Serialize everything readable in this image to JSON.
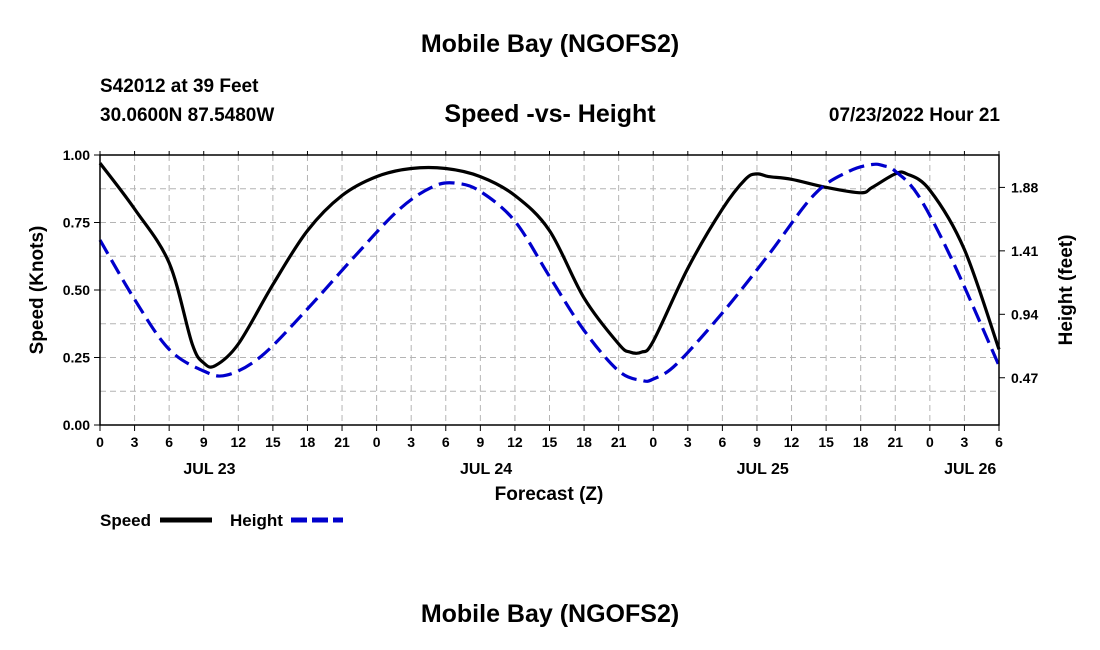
{
  "header": {
    "title": "Mobile Bay (NGOFS2)",
    "station": "S42012 at 39 Feet",
    "coords": "30.0600N  87.5480W",
    "datetime": "07/23/2022 Hour 21",
    "footer_title": "Mobile Bay (NGOFS2)"
  },
  "chart_data": {
    "type": "line",
    "title": "Speed -vs- Height",
    "xlabel": "Forecast (Z)",
    "ylabel": "Speed (Knots)",
    "y2label": "Height (feet)",
    "xlim": [
      0,
      78
    ],
    "ylim": [
      0,
      1
    ],
    "y2lim": [
      0.12,
      2.12
    ],
    "x_tick_labels": [
      "0",
      "3",
      "6",
      "9",
      "12",
      "15",
      "18",
      "21",
      "0",
      "3",
      "6",
      "9",
      "12",
      "15",
      "18",
      "21",
      "0",
      "3",
      "6",
      "9",
      "12",
      "15",
      "18",
      "21",
      "0",
      "3",
      "6"
    ],
    "date_labels": [
      {
        "label": "JUL 23",
        "x": 9.5
      },
      {
        "label": "JUL 24",
        "x": 33.5
      },
      {
        "label": "JUL 25",
        "x": 57.5
      },
      {
        "label": "JUL 26",
        "x": 75.5
      }
    ],
    "y_ticks": [
      "0.00",
      "0.25",
      "0.50",
      "0.75",
      "1.00"
    ],
    "y2_ticks": [
      "0.47",
      "0.94",
      "1.41",
      "1.88"
    ],
    "grid": true,
    "legend": "bottom-left",
    "series": [
      {
        "name": "Speed",
        "color": "#000000",
        "axis": "left",
        "style": "solid",
        "x": [
          0,
          3,
          6,
          8,
          9,
          10,
          12,
          15,
          18,
          21,
          24,
          27,
          30,
          33,
          36,
          39,
          42,
          45,
          46,
          47,
          48,
          51,
          54,
          56,
          57,
          58,
          60,
          63,
          66,
          67,
          69,
          70,
          72,
          75,
          78
        ],
        "y": [
          0.97,
          0.8,
          0.6,
          0.3,
          0.23,
          0.22,
          0.3,
          0.52,
          0.72,
          0.85,
          0.92,
          0.95,
          0.95,
          0.92,
          0.85,
          0.72,
          0.47,
          0.3,
          0.27,
          0.27,
          0.31,
          0.58,
          0.8,
          0.91,
          0.93,
          0.92,
          0.91,
          0.88,
          0.86,
          0.88,
          0.93,
          0.93,
          0.87,
          0.65,
          0.28
        ]
      },
      {
        "name": "Height",
        "color": "#0000cc",
        "axis": "right",
        "style": "dashed",
        "x": [
          0,
          3,
          6,
          9,
          11,
          14,
          18,
          22,
          26,
          29,
          31,
          33,
          36,
          39,
          42,
          45,
          47,
          48,
          50,
          54,
          58,
          62,
          65,
          67,
          68,
          69,
          71,
          74,
          78
        ],
        "y": [
          1.49,
          1.05,
          0.68,
          0.52,
          0.49,
          0.63,
          0.98,
          1.36,
          1.72,
          1.89,
          1.91,
          1.85,
          1.63,
          1.22,
          0.82,
          0.52,
          0.45,
          0.46,
          0.57,
          0.95,
          1.38,
          1.83,
          2.0,
          2.05,
          2.04,
          2.0,
          1.82,
          1.33,
          0.56
        ]
      }
    ]
  }
}
